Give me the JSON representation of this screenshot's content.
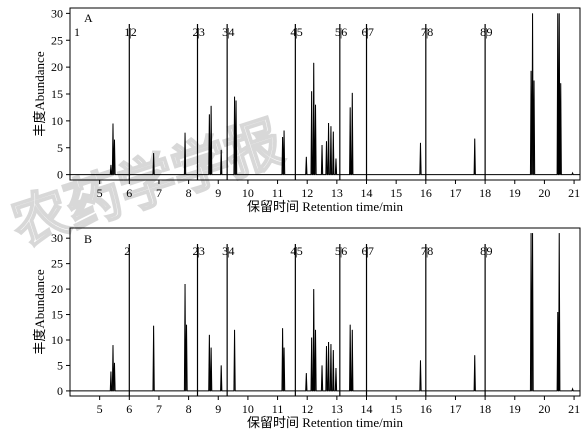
{
  "watermark": "农药学学报",
  "chart_data": [
    {
      "panel": "A",
      "type": "line",
      "xlabel": "保留时间 Retention time/min",
      "ylabel": "丰度Abundance",
      "xlim": [
        4,
        21.2
      ],
      "ylim": [
        -1,
        31
      ],
      "xticks": [
        5,
        6,
        7,
        8,
        9,
        10,
        11,
        12,
        13,
        14,
        15,
        16,
        17,
        18,
        19,
        20,
        21
      ],
      "yticks": [
        0,
        5,
        10,
        15,
        20,
        25,
        30
      ],
      "segment_markers": [
        {
          "x": 6.0,
          "label": "1|2"
        },
        {
          "x": 8.3,
          "label": "2|3"
        },
        {
          "x": 9.3,
          "label": "3|4"
        },
        {
          "x": 11.6,
          "label": "4|5"
        },
        {
          "x": 13.1,
          "label": "5|6"
        },
        {
          "x": 14.0,
          "label": "6|7"
        },
        {
          "x": 16.0,
          "label": "7|8"
        },
        {
          "x": 18.0,
          "label": "8|9"
        }
      ],
      "leading_label": "1",
      "peaks": [
        {
          "x": 5.38,
          "y": 1.8
        },
        {
          "x": 5.45,
          "y": 9.5
        },
        {
          "x": 5.5,
          "y": 6.5
        },
        {
          "x": 6.82,
          "y": 4.0
        },
        {
          "x": 7.88,
          "y": 7.8
        },
        {
          "x": 8.7,
          "y": 11.2
        },
        {
          "x": 8.76,
          "y": 12.8
        },
        {
          "x": 9.1,
          "y": 4.6
        },
        {
          "x": 9.55,
          "y": 14.5
        },
        {
          "x": 9.6,
          "y": 13.8
        },
        {
          "x": 11.17,
          "y": 7.0
        },
        {
          "x": 11.22,
          "y": 8.2
        },
        {
          "x": 11.97,
          "y": 3.3
        },
        {
          "x": 12.15,
          "y": 15.5
        },
        {
          "x": 12.22,
          "y": 20.8
        },
        {
          "x": 12.28,
          "y": 13.0
        },
        {
          "x": 12.5,
          "y": 5.5
        },
        {
          "x": 12.65,
          "y": 6.2
        },
        {
          "x": 12.72,
          "y": 9.6
        },
        {
          "x": 12.8,
          "y": 9.0
        },
        {
          "x": 12.88,
          "y": 8.0
        },
        {
          "x": 12.97,
          "y": 3.0
        },
        {
          "x": 13.45,
          "y": 12.5
        },
        {
          "x": 13.52,
          "y": 15.2
        },
        {
          "x": 15.82,
          "y": 5.9
        },
        {
          "x": 17.65,
          "y": 6.7
        },
        {
          "x": 19.55,
          "y": 19.3
        },
        {
          "x": 19.6,
          "y": 30.0
        },
        {
          "x": 19.65,
          "y": 17.5
        },
        {
          "x": 20.45,
          "y": 30.0
        },
        {
          "x": 20.5,
          "y": 30.0
        },
        {
          "x": 20.55,
          "y": 17.0
        },
        {
          "x": 20.95,
          "y": 0.3
        }
      ]
    },
    {
      "panel": "B",
      "type": "line",
      "xlabel": "保留时间 Retention time/min",
      "ylabel": "丰度Abundance",
      "xlim": [
        4,
        21.2
      ],
      "ylim": [
        -1,
        32
      ],
      "xticks": [
        5,
        6,
        7,
        8,
        9,
        10,
        11,
        12,
        13,
        14,
        15,
        16,
        17,
        18,
        19,
        20,
        21
      ],
      "yticks": [
        0,
        5,
        10,
        15,
        20,
        25,
        30
      ],
      "segment_markers": [
        {
          "x": 6.0,
          "label": "2"
        },
        {
          "x": 8.3,
          "label": "2|3"
        },
        {
          "x": 9.3,
          "label": "3|4"
        },
        {
          "x": 11.6,
          "label": "4|5"
        },
        {
          "x": 13.1,
          "label": "5|6"
        },
        {
          "x": 14.0,
          "label": "6|7"
        },
        {
          "x": 16.0,
          "label": "7|8"
        },
        {
          "x": 18.0,
          "label": "8|9"
        }
      ],
      "leading_label": "",
      "peaks": [
        {
          "x": 5.38,
          "y": 3.8
        },
        {
          "x": 5.45,
          "y": 9.0
        },
        {
          "x": 5.5,
          "y": 5.5
        },
        {
          "x": 6.82,
          "y": 12.8
        },
        {
          "x": 7.88,
          "y": 21.0
        },
        {
          "x": 7.93,
          "y": 13.0
        },
        {
          "x": 8.7,
          "y": 11.0
        },
        {
          "x": 8.76,
          "y": 8.5
        },
        {
          "x": 9.1,
          "y": 5.0
        },
        {
          "x": 9.55,
          "y": 12.0
        },
        {
          "x": 11.17,
          "y": 12.3
        },
        {
          "x": 11.22,
          "y": 8.5
        },
        {
          "x": 11.97,
          "y": 3.5
        },
        {
          "x": 12.15,
          "y": 10.5
        },
        {
          "x": 12.22,
          "y": 20.0
        },
        {
          "x": 12.28,
          "y": 12.0
        },
        {
          "x": 12.5,
          "y": 5.0
        },
        {
          "x": 12.65,
          "y": 8.8
        },
        {
          "x": 12.72,
          "y": 9.6
        },
        {
          "x": 12.8,
          "y": 9.2
        },
        {
          "x": 12.88,
          "y": 8.0
        },
        {
          "x": 12.97,
          "y": 4.5
        },
        {
          "x": 13.45,
          "y": 13.0
        },
        {
          "x": 13.52,
          "y": 12.0
        },
        {
          "x": 15.82,
          "y": 6.0
        },
        {
          "x": 17.65,
          "y": 7.0
        },
        {
          "x": 19.55,
          "y": 31.0
        },
        {
          "x": 19.6,
          "y": 31.0
        },
        {
          "x": 20.45,
          "y": 15.5
        },
        {
          "x": 20.5,
          "y": 31.0
        },
        {
          "x": 20.95,
          "y": 0.4
        }
      ]
    }
  ]
}
